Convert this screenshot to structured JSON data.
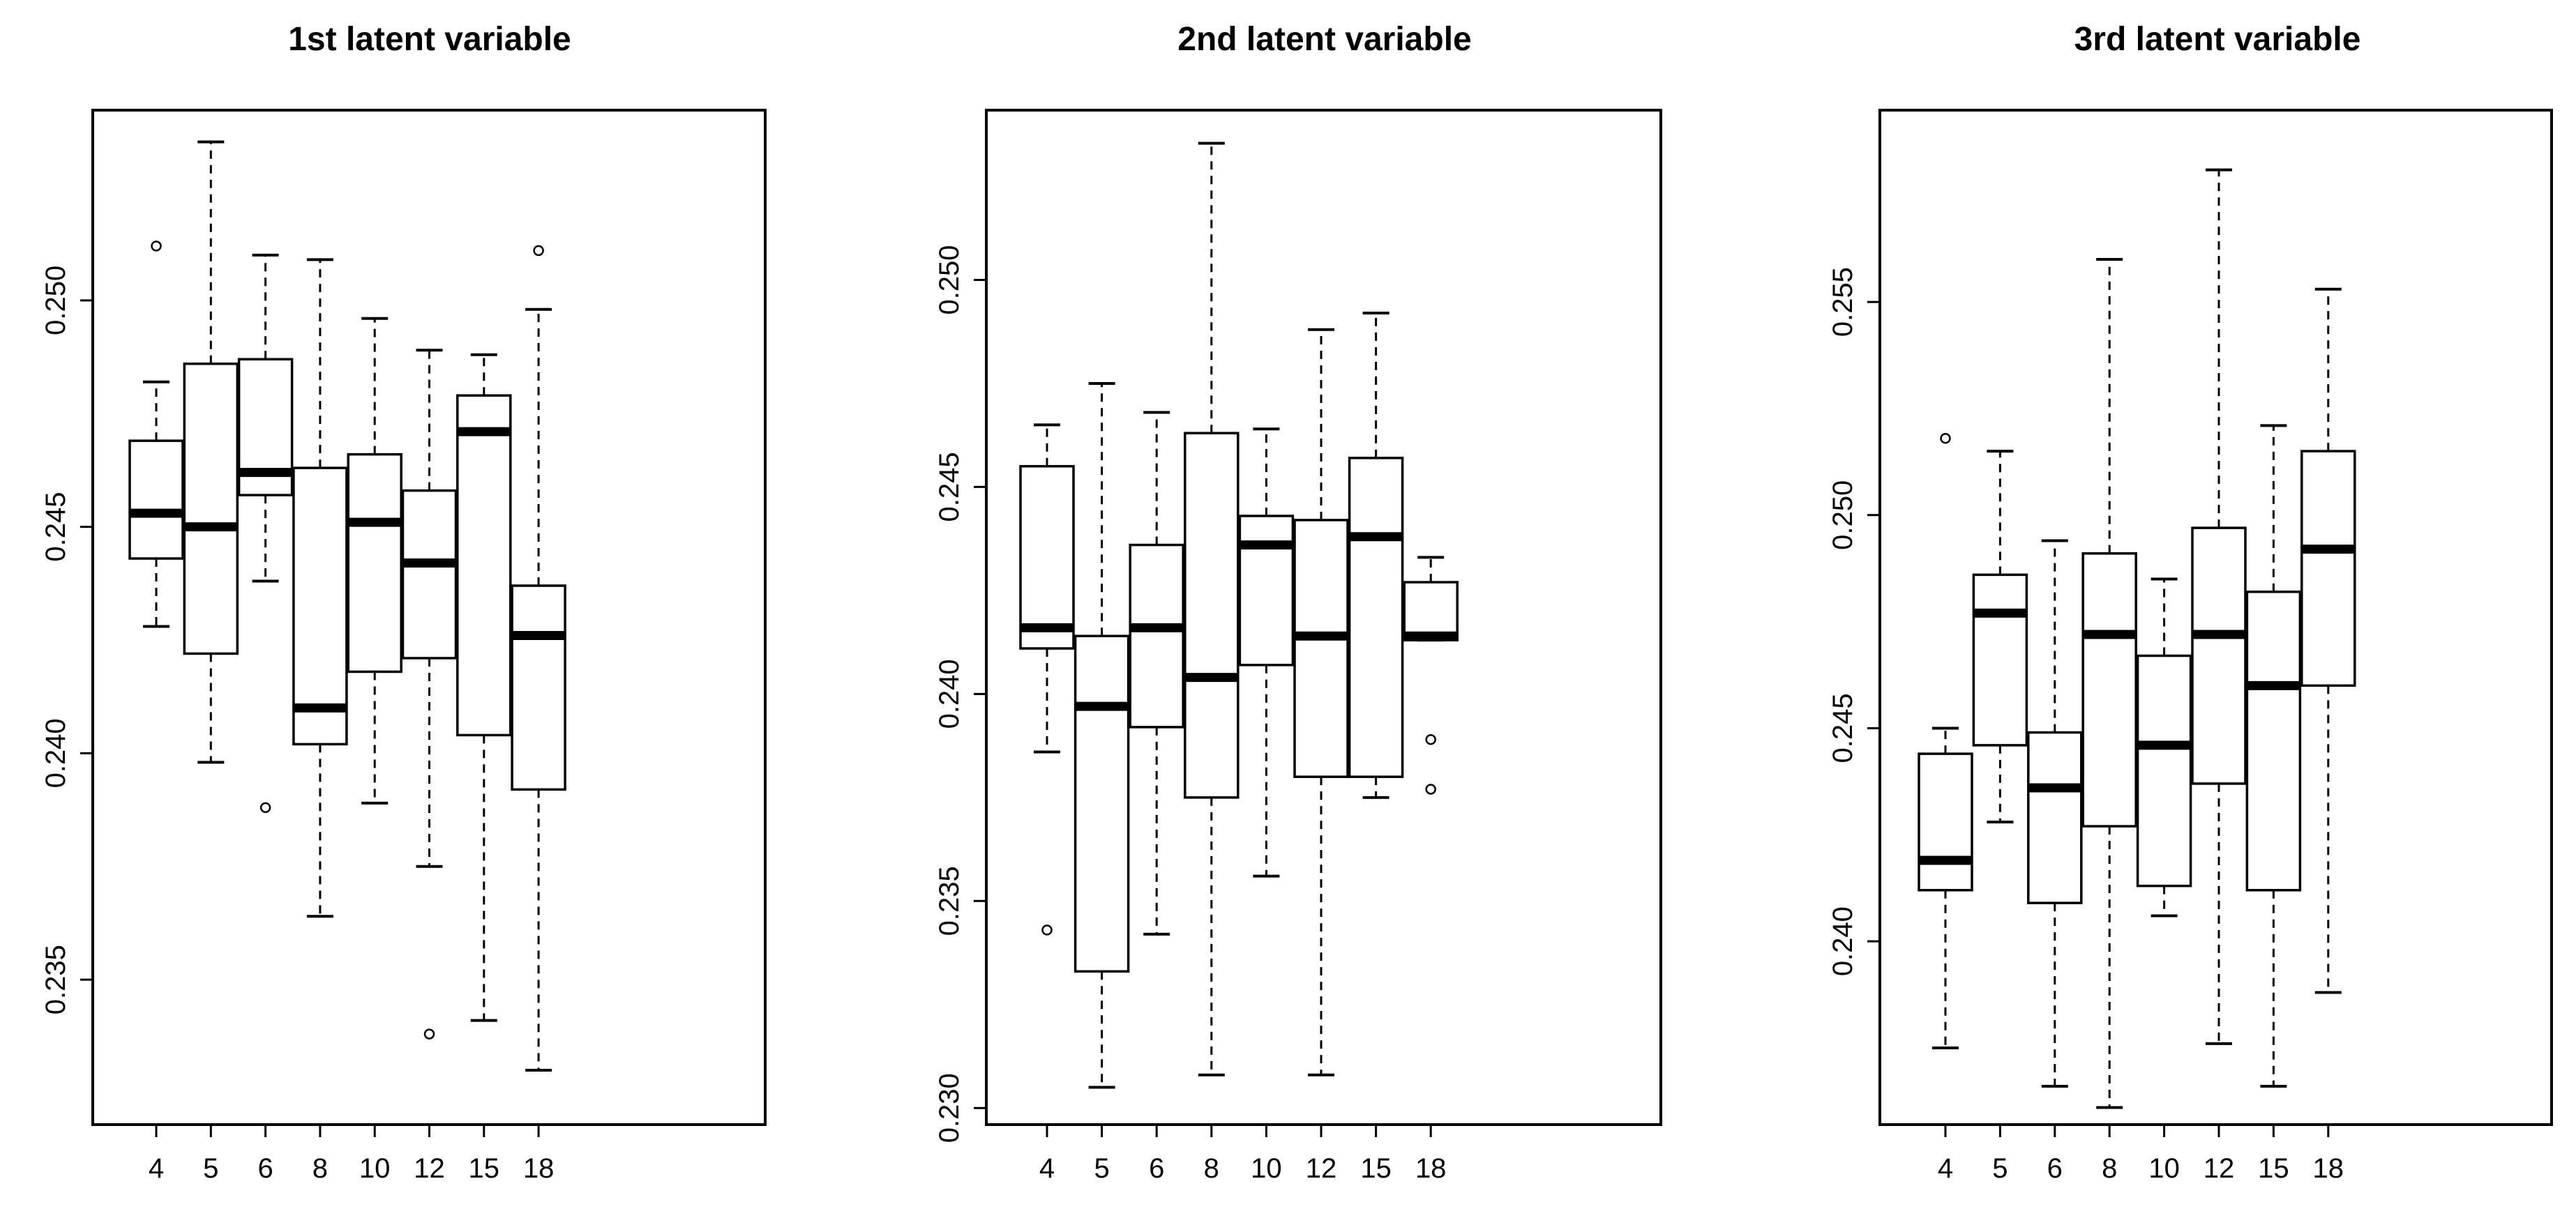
{
  "chart_data": [
    {
      "type": "boxplot",
      "title": "1st latent variable",
      "xlabel": "",
      "ylabel": "",
      "categories": [
        "4",
        "5",
        "6",
        "8",
        "10",
        "12",
        "15",
        "18"
      ],
      "ylim": [
        0.2318,
        0.2542
      ],
      "yticks": [
        0.235,
        0.24,
        0.245,
        0.25
      ],
      "ytick_labels": [
        "0.235",
        "0.240",
        "0.245",
        "0.250"
      ],
      "boxes": [
        {
          "category": "4",
          "whisker_low": 0.2428,
          "q1": 0.2443,
          "median": 0.2453,
          "q3": 0.2469,
          "whisker_high": 0.2482,
          "outliers": [
            0.2512
          ]
        },
        {
          "category": "5",
          "whisker_low": 0.2398,
          "q1": 0.2422,
          "median": 0.245,
          "q3": 0.2486,
          "whisker_high": 0.2535,
          "outliers": []
        },
        {
          "category": "6",
          "whisker_low": 0.2438,
          "q1": 0.2457,
          "median": 0.2462,
          "q3": 0.2487,
          "whisker_high": 0.251,
          "outliers": [
            0.2388
          ]
        },
        {
          "category": "8",
          "whisker_low": 0.2364,
          "q1": 0.2402,
          "median": 0.241,
          "q3": 0.2463,
          "whisker_high": 0.2509,
          "outliers": []
        },
        {
          "category": "10",
          "whisker_low": 0.2389,
          "q1": 0.2418,
          "median": 0.2451,
          "q3": 0.2466,
          "whisker_high": 0.2496,
          "outliers": []
        },
        {
          "category": "12",
          "whisker_low": 0.2375,
          "q1": 0.2421,
          "median": 0.2442,
          "q3": 0.2458,
          "whisker_high": 0.2489,
          "outliers": [
            0.2338
          ]
        },
        {
          "category": "15",
          "whisker_low": 0.2341,
          "q1": 0.2404,
          "median": 0.2471,
          "q3": 0.2479,
          "whisker_high": 0.2488,
          "outliers": []
        },
        {
          "category": "18",
          "whisker_low": 0.233,
          "q1": 0.2392,
          "median": 0.2426,
          "q3": 0.2437,
          "whisker_high": 0.2498,
          "outliers": [
            0.2511
          ]
        }
      ]
    },
    {
      "type": "boxplot",
      "title": "2nd latent variable",
      "xlabel": "",
      "ylabel": "",
      "categories": [
        "4",
        "5",
        "6",
        "8",
        "10",
        "12",
        "15",
        "18"
      ],
      "ylim": [
        0.2296,
        0.2541
      ],
      "yticks": [
        0.23,
        0.235,
        0.24,
        0.245,
        0.25
      ],
      "ytick_labels": [
        "0.230",
        "0.235",
        "0.240",
        "0.245",
        "0.250"
      ],
      "boxes": [
        {
          "category": "4",
          "whisker_low": 0.2386,
          "q1": 0.2411,
          "median": 0.2416,
          "q3": 0.2455,
          "whisker_high": 0.2465,
          "outliers": [
            0.2343
          ]
        },
        {
          "category": "5",
          "whisker_low": 0.2305,
          "q1": 0.2333,
          "median": 0.2397,
          "q3": 0.2414,
          "whisker_high": 0.2475,
          "outliers": []
        },
        {
          "category": "6",
          "whisker_low": 0.2342,
          "q1": 0.2392,
          "median": 0.2416,
          "q3": 0.2436,
          "whisker_high": 0.2468,
          "outliers": []
        },
        {
          "category": "8",
          "whisker_low": 0.2308,
          "q1": 0.2375,
          "median": 0.2404,
          "q3": 0.2463,
          "whisker_high": 0.2533,
          "outliers": []
        },
        {
          "category": "10",
          "whisker_low": 0.2356,
          "q1": 0.2407,
          "median": 0.2436,
          "q3": 0.2443,
          "whisker_high": 0.2464,
          "outliers": []
        },
        {
          "category": "12",
          "whisker_low": 0.2308,
          "q1": 0.238,
          "median": 0.2414,
          "q3": 0.2442,
          "whisker_high": 0.2488,
          "outliers": []
        },
        {
          "category": "15",
          "whisker_low": 0.2375,
          "q1": 0.238,
          "median": 0.2438,
          "q3": 0.2457,
          "whisker_high": 0.2492,
          "outliers": []
        },
        {
          "category": "18",
          "whisker_low": 0.2413,
          "q1": 0.2413,
          "median": 0.2414,
          "q3": 0.2427,
          "whisker_high": 0.2433,
          "outliers": [
            0.2389,
            0.2377
          ]
        }
      ]
    },
    {
      "type": "boxplot",
      "title": "3rd latent variable",
      "xlabel": "",
      "ylabel": "",
      "categories": [
        "4",
        "5",
        "6",
        "8",
        "10",
        "12",
        "15",
        "18"
      ],
      "ylim": [
        0.2357,
        0.2595
      ],
      "yticks": [
        0.24,
        0.245,
        0.25,
        0.255
      ],
      "ytick_labels": [
        "0.240",
        "0.245",
        "0.250",
        "0.255"
      ],
      "boxes": [
        {
          "category": "4",
          "whisker_low": 0.2375,
          "q1": 0.2412,
          "median": 0.2419,
          "q3": 0.2444,
          "whisker_high": 0.245,
          "outliers": [
            0.2518
          ]
        },
        {
          "category": "5",
          "whisker_low": 0.2428,
          "q1": 0.2446,
          "median": 0.2477,
          "q3": 0.2486,
          "whisker_high": 0.2515,
          "outliers": []
        },
        {
          "category": "6",
          "whisker_low": 0.2366,
          "q1": 0.2409,
          "median": 0.2436,
          "q3": 0.2449,
          "whisker_high": 0.2494,
          "outliers": []
        },
        {
          "category": "8",
          "whisker_low": 0.2361,
          "q1": 0.2427,
          "median": 0.2472,
          "q3": 0.2491,
          "whisker_high": 0.256,
          "outliers": []
        },
        {
          "category": "10",
          "whisker_low": 0.2406,
          "q1": 0.2413,
          "median": 0.2446,
          "q3": 0.2467,
          "whisker_high": 0.2485,
          "outliers": []
        },
        {
          "category": "12",
          "whisker_low": 0.2376,
          "q1": 0.2437,
          "median": 0.2472,
          "q3": 0.2497,
          "whisker_high": 0.2581,
          "outliers": []
        },
        {
          "category": "15",
          "whisker_low": 0.2366,
          "q1": 0.2412,
          "median": 0.246,
          "q3": 0.2482,
          "whisker_high": 0.2521,
          "outliers": []
        },
        {
          "category": "18",
          "whisker_low": 0.2388,
          "q1": 0.246,
          "median": 0.2492,
          "q3": 0.2515,
          "whisker_high": 0.2553,
          "outliers": []
        }
      ]
    }
  ]
}
